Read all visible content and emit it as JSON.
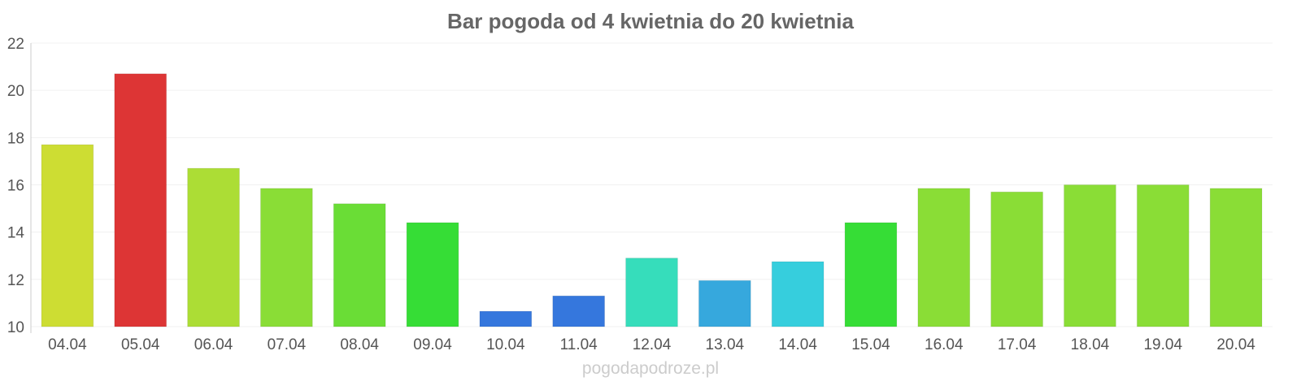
{
  "chart_data": {
    "type": "bar",
    "title": "Bar pogoda od 4 kwietnia do 20 kwietnia",
    "xlabel": "",
    "ylabel": "",
    "ylim": [
      10,
      22
    ],
    "yticks": [
      "10",
      "12",
      "14",
      "16",
      "18",
      "20",
      "22"
    ],
    "categories": [
      "04.04",
      "05.04",
      "06.04",
      "07.04",
      "08.04",
      "09.04",
      "10.04",
      "11.04",
      "12.04",
      "13.04",
      "14.04",
      "15.04",
      "16.04",
      "17.04",
      "18.04",
      "19.04",
      "20.04"
    ],
    "values": [
      17.7,
      20.7,
      16.7,
      15.85,
      15.2,
      14.4,
      10.65,
      11.3,
      12.9,
      11.95,
      12.75,
      14.4,
      15.85,
      15.7,
      16.0,
      16.0,
      15.85
    ],
    "colors": [
      "#cddd33",
      "#dd3535",
      "#acdd35",
      "#8add36",
      "#6add36",
      "#36dd36",
      "#3577dd",
      "#3577dd",
      "#36ddbb",
      "#36a8dd",
      "#36cedd",
      "#36dd36",
      "#8add36",
      "#8add36",
      "#8add36",
      "#8add36",
      "#8add36"
    ],
    "grid": true,
    "legend": "none"
  },
  "watermark": "pogodapodroze.pl"
}
